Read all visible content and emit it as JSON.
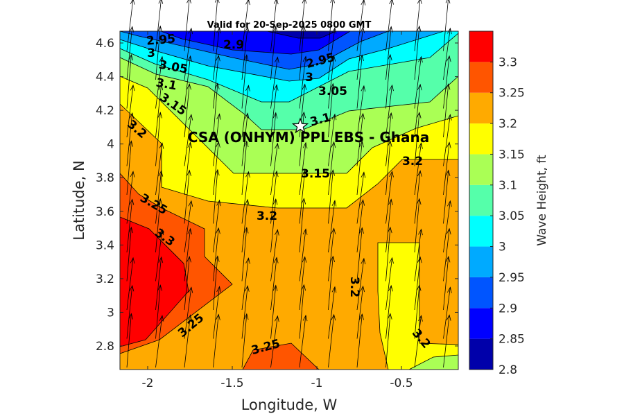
{
  "chart_data": {
    "type": "contour",
    "title": "Valid for 20-Sep-2025 0800 GMT",
    "xlabel": "Longitude, W",
    "ylabel": "Latitude, N",
    "xlim": [
      -2.164,
      -0.164
    ],
    "ylim": [
      2.66,
      4.67
    ],
    "xticks": [
      "-2",
      "-1.5",
      "-1",
      "-0.5"
    ],
    "xtick_values": [
      -2,
      -1.5,
      -1,
      -0.5
    ],
    "yticks": [
      "2.8",
      "3",
      "3.2",
      "3.4",
      "3.6",
      "3.8",
      "4",
      "4.2",
      "4.4",
      "4.6"
    ],
    "ytick_values": [
      2.8,
      3.0,
      3.2,
      3.4,
      3.6,
      3.8,
      4.0,
      4.2,
      4.4,
      4.6
    ],
    "contour_levels": [
      2.8,
      2.85,
      2.9,
      2.95,
      3.0,
      3.05,
      3.1,
      3.15,
      3.2,
      3.25,
      3.3,
      3.35
    ],
    "level_colors": [
      "#0000aa",
      "#0000ff",
      "#0055ff",
      "#00aaff",
      "#00ffff",
      "#55ffaa",
      "#aaff55",
      "#ffff00",
      "#ffaa00",
      "#ff5500",
      "#ff0000"
    ],
    "contour_labels": [
      "2.95",
      "3",
      "2.9",
      "3.05",
      "3.1",
      "2.95",
      "3",
      "3.05",
      "3.15",
      "3.2",
      "3.1",
      "3.15",
      "3.2",
      "3.2",
      "3.25",
      "3.3",
      "3.2",
      "3.25",
      "3.25",
      "3.2"
    ],
    "vector_field": "wave direction arrows pointing roughly north-northeast",
    "colorbar": {
      "label": "Wave Height, ft",
      "range": [
        2.8,
        3.35
      ],
      "ticks": [
        "2.8",
        "2.85",
        "2.9",
        "2.95",
        "3",
        "3.05",
        "3.1",
        "3.15",
        "3.2",
        "3.25",
        "3.3"
      ],
      "tick_values": [
        2.8,
        2.85,
        2.9,
        2.95,
        3.0,
        3.05,
        3.1,
        3.15,
        3.2,
        3.25,
        3.3
      ]
    },
    "annotation": {
      "text": "CSA (ONHYM) PPL EBS  - Ghana",
      "marker": "star",
      "lon": -1.1,
      "lat": 4.11
    }
  }
}
